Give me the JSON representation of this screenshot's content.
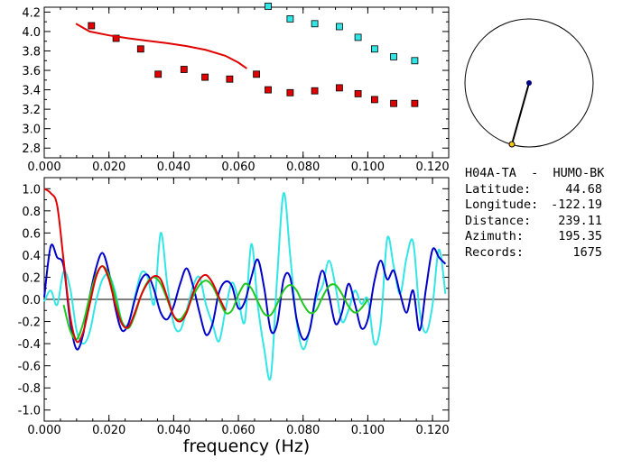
{
  "station_title": "H04A-TA  -  HUMO-BK",
  "info": [
    {
      "label": "Latitude:",
      "value": "44.68"
    },
    {
      "label": "Longitude:",
      "value": "-122.19"
    },
    {
      "label": "Distance:",
      "value": "239.11"
    },
    {
      "label": "Azimuth:",
      "value": "195.35"
    },
    {
      "label": "Records:",
      "value": "1675"
    }
  ],
  "colors": {
    "red": "#e00000",
    "dark_blue": "#0000c8",
    "cyan": "#33e6e6",
    "green": "#1ec81e",
    "marker_red": "#e00000",
    "marker_cyan": "#33e6e6",
    "compass_station": "#000080",
    "compass_source": "#ffc800"
  },
  "chart_data": [
    {
      "type": "scatter",
      "title": "",
      "xlabel": "",
      "ylabel": "",
      "xlim": [
        0.0,
        0.125
      ],
      "ylim": [
        2.7,
        4.25
      ],
      "xticks": [
        "0.000",
        "0.020",
        "0.040",
        "0.060",
        "0.080",
        "0.100",
        "0.120"
      ],
      "yticks": [
        "2.8",
        "3.0",
        "3.2",
        "3.4",
        "3.6",
        "3.8",
        "4.0",
        "4.2"
      ],
      "series": [
        {
          "type": "scatter",
          "color": "#e00000",
          "x": [
            0.0146,
            0.0222,
            0.0298,
            0.0352,
            0.0432,
            0.0497,
            0.0573,
            0.0656,
            0.0692,
            0.076,
            0.0836,
            0.0912,
            0.097,
            0.1021,
            0.108,
            0.1145
          ],
          "y": [
            4.06,
            3.93,
            3.82,
            3.56,
            3.61,
            3.53,
            3.51,
            3.56,
            3.4,
            3.37,
            3.39,
            3.42,
            3.36,
            3.3,
            3.26,
            3.26
          ]
        },
        {
          "type": "scatter",
          "color": "#33e6e6",
          "x": [
            0.0692,
            0.076,
            0.0836,
            0.0912,
            0.097,
            0.1021,
            0.108,
            0.1145
          ],
          "y": [
            4.26,
            4.13,
            4.08,
            4.05,
            3.94,
            3.82,
            3.74,
            3.7
          ]
        },
        {
          "type": "line",
          "color": "#e00000",
          "x": [
            0.0098,
            0.014,
            0.02,
            0.026,
            0.032,
            0.038,
            0.044,
            0.05,
            0.056,
            0.06,
            0.0626
          ],
          "y": [
            4.08,
            4.0,
            3.96,
            3.93,
            3.905,
            3.88,
            3.85,
            3.81,
            3.75,
            3.68,
            3.62
          ]
        }
      ]
    },
    {
      "type": "line",
      "title": "",
      "xlabel": "frequency (Hz)",
      "ylabel": "",
      "xlim": [
        0.0,
        0.125
      ],
      "ylim": [
        -1.1,
        1.1
      ],
      "xticks": [
        "0.000",
        "0.020",
        "0.040",
        "0.060",
        "0.080",
        "0.100",
        "0.120"
      ],
      "yticks": [
        "-1.0",
        "-0.8",
        "-0.6",
        "-0.4",
        "-0.2",
        "0.0",
        "0.2",
        "0.4",
        "0.6",
        "0.8",
        "1.0"
      ],
      "series": [
        {
          "color": "#e00000",
          "x": [
            0.0,
            0.002,
            0.004,
            0.006,
            0.008,
            0.01,
            0.012,
            0.014,
            0.016,
            0.018,
            0.02,
            0.022,
            0.024,
            0.026,
            0.028,
            0.03,
            0.032,
            0.034,
            0.036,
            0.038,
            0.04,
            0.042,
            0.044,
            0.046,
            0.048,
            0.05,
            0.052,
            0.054,
            0.056
          ],
          "y": [
            1.0,
            0.96,
            0.85,
            0.35,
            -0.15,
            -0.38,
            -0.3,
            -0.05,
            0.2,
            0.3,
            0.18,
            -0.05,
            -0.22,
            -0.25,
            -0.12,
            0.04,
            0.15,
            0.21,
            0.18,
            0.02,
            -0.15,
            -0.2,
            -0.12,
            0.06,
            0.18,
            0.22,
            0.15,
            0.02,
            -0.1
          ]
        },
        {
          "color": "#1ec81e",
          "x": [
            0.006,
            0.008,
            0.01,
            0.012,
            0.014,
            0.016,
            0.018,
            0.02,
            0.022,
            0.024,
            0.026,
            0.028,
            0.03,
            0.032,
            0.034,
            0.036,
            0.038,
            0.04,
            0.042,
            0.044,
            0.046,
            0.048,
            0.05,
            0.052,
            0.054,
            0.056,
            0.058,
            0.06,
            0.062,
            0.064,
            0.066,
            0.068,
            0.07,
            0.072,
            0.074,
            0.076,
            0.078,
            0.08,
            0.082,
            0.084,
            0.086,
            0.088,
            0.09,
            0.092,
            0.094,
            0.096,
            0.098,
            0.1
          ],
          "y": [
            -0.05,
            -0.28,
            -0.36,
            -0.22,
            0.02,
            0.22,
            0.3,
            0.22,
            0.02,
            -0.2,
            -0.26,
            -0.14,
            0.04,
            0.16,
            0.2,
            0.14,
            0.0,
            -0.15,
            -0.18,
            -0.1,
            0.03,
            0.13,
            0.17,
            0.12,
            0.0,
            -0.12,
            -0.1,
            0.04,
            0.14,
            0.1,
            -0.02,
            -0.13,
            -0.14,
            -0.04,
            0.08,
            0.13,
            0.08,
            -0.04,
            -0.12,
            -0.1,
            0.02,
            0.12,
            0.13,
            0.05,
            -0.06,
            -0.12,
            -0.08,
            0.0
          ]
        },
        {
          "color": "#0000c8",
          "x": [
            0.0,
            0.002,
            0.004,
            0.006,
            0.008,
            0.01,
            0.012,
            0.014,
            0.016,
            0.018,
            0.02,
            0.022,
            0.024,
            0.026,
            0.028,
            0.03,
            0.032,
            0.034,
            0.036,
            0.038,
            0.04,
            0.042,
            0.044,
            0.046,
            0.048,
            0.05,
            0.052,
            0.054,
            0.056,
            0.058,
            0.06,
            0.062,
            0.064,
            0.066,
            0.068,
            0.07,
            0.072,
            0.074,
            0.076,
            0.078,
            0.08,
            0.082,
            0.084,
            0.086,
            0.088,
            0.09,
            0.092,
            0.094,
            0.096,
            0.098,
            0.1,
            0.102,
            0.104,
            0.106,
            0.108,
            0.11,
            0.112,
            0.114,
            0.116,
            0.118,
            0.12,
            0.122,
            0.124
          ],
          "y": [
            0.02,
            0.48,
            0.38,
            0.3,
            -0.2,
            -0.45,
            -0.32,
            0.02,
            0.28,
            0.42,
            0.24,
            -0.08,
            -0.28,
            -0.22,
            0.0,
            0.18,
            0.22,
            0.08,
            -0.12,
            -0.18,
            -0.06,
            0.14,
            0.28,
            0.12,
            -0.12,
            -0.32,
            -0.22,
            0.06,
            0.16,
            0.12,
            -0.08,
            -0.02,
            0.2,
            0.36,
            0.1,
            -0.28,
            -0.22,
            0.18,
            0.2,
            -0.18,
            -0.36,
            -0.28,
            0.05,
            0.26,
            0.04,
            -0.22,
            -0.12,
            0.14,
            -0.04,
            -0.26,
            -0.18,
            0.16,
            0.35,
            0.18,
            0.26,
            0.05,
            -0.12,
            0.08,
            -0.28,
            0.1,
            0.45,
            0.38,
            0.32
          ]
        },
        {
          "color": "#33e6e6",
          "x": [
            0.0,
            0.002,
            0.004,
            0.006,
            0.008,
            0.01,
            0.012,
            0.014,
            0.016,
            0.018,
            0.02,
            0.022,
            0.024,
            0.026,
            0.028,
            0.03,
            0.032,
            0.034,
            0.036,
            0.038,
            0.04,
            0.042,
            0.044,
            0.046,
            0.048,
            0.05,
            0.052,
            0.054,
            0.056,
            0.058,
            0.06,
            0.062,
            0.064,
            0.066,
            0.068,
            0.07,
            0.072,
            0.074,
            0.076,
            0.078,
            0.08,
            0.082,
            0.084,
            0.086,
            0.088,
            0.09,
            0.092,
            0.094,
            0.096,
            0.098,
            0.1,
            0.102,
            0.104,
            0.106,
            0.108,
            0.11,
            0.112,
            0.114,
            0.116,
            0.118,
            0.12,
            0.122,
            0.124
          ],
          "y": [
            -0.02,
            0.08,
            -0.05,
            0.25,
            0.1,
            -0.28,
            -0.4,
            -0.3,
            -0.02,
            0.18,
            0.22,
            0.06,
            -0.2,
            -0.22,
            0.02,
            0.24,
            0.2,
            -0.04,
            0.6,
            0.14,
            -0.22,
            -0.28,
            -0.1,
            0.12,
            0.2,
            -0.05,
            -0.22,
            -0.38,
            -0.1,
            0.15,
            0.0,
            -0.2,
            0.5,
            -0.05,
            -0.45,
            -0.7,
            0.2,
            0.96,
            0.4,
            -0.2,
            -0.45,
            -0.28,
            0.0,
            0.12,
            0.35,
            0.12,
            -0.2,
            -0.1,
            0.08,
            -0.04,
            0.0,
            -0.4,
            -0.22,
            0.55,
            0.3,
            0.05,
            0.38,
            0.52,
            -0.1,
            -0.3,
            -0.05,
            0.45,
            0.05
          ]
        }
      ]
    }
  ]
}
